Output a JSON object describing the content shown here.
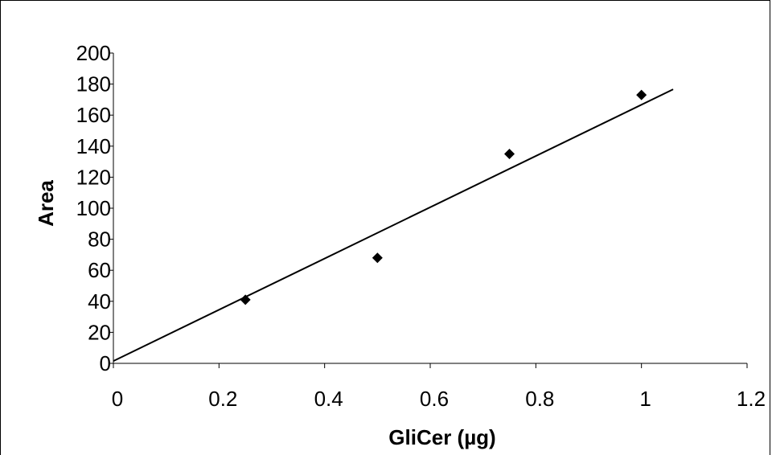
{
  "chart_data": {
    "type": "scatter",
    "xlabel": "GliCer (µg)",
    "ylabel": "Area",
    "xlim": [
      0,
      1.2
    ],
    "ylim": [
      0,
      200
    ],
    "x_ticks": [
      "0",
      "0.2",
      "0.4",
      "0.6",
      "0.8",
      "1",
      "1.2"
    ],
    "y_ticks": [
      "0",
      "20",
      "40",
      "60",
      "80",
      "100",
      "120",
      "140",
      "160",
      "180",
      "200"
    ],
    "series": [
      {
        "marker": "diamond",
        "color": "#000000",
        "points": [
          {
            "x": 0.25,
            "y": 41
          },
          {
            "x": 0.5,
            "y": 68
          },
          {
            "x": 0.75,
            "y": 135
          },
          {
            "x": 1.0,
            "y": 173
          }
        ]
      }
    ],
    "trendline": {
      "type": "linear",
      "color": "#000000",
      "x_range": [
        0,
        1.06
      ],
      "slope": 165.2,
      "intercept": 1.5
    },
    "grid": false,
    "legend": "none"
  }
}
